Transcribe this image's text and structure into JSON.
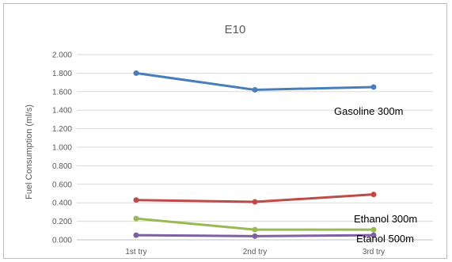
{
  "chart_data": {
    "type": "line",
    "title": "E10",
    "xlabel": "",
    "ylabel": "Fuel Consumption (ml/s)",
    "categories": [
      "1st try",
      "2nd try",
      "3rd try"
    ],
    "ylim": [
      0,
      2.0
    ],
    "yticks": [
      "0.000",
      "0.200",
      "0.400",
      "0.600",
      "0.800",
      "1.000",
      "1.200",
      "1.400",
      "1.600",
      "1.800",
      "2.000"
    ],
    "grid": true,
    "legend": "none",
    "series": [
      {
        "name": "Gasoline 300m",
        "color": "#4a7ebb",
        "values": [
          1.8,
          1.62,
          1.65
        ]
      },
      {
        "name": "Ethanol 300m",
        "color": "#be4b48",
        "values": [
          0.43,
          0.41,
          0.49
        ]
      },
      {
        "name": "",
        "color": "#98b954",
        "values": [
          0.23,
          0.11,
          0.11
        ]
      },
      {
        "name": "Etanol 500m",
        "color": "#7d60a0",
        "values": [
          0.05,
          0.04,
          0.05
        ]
      }
    ]
  }
}
